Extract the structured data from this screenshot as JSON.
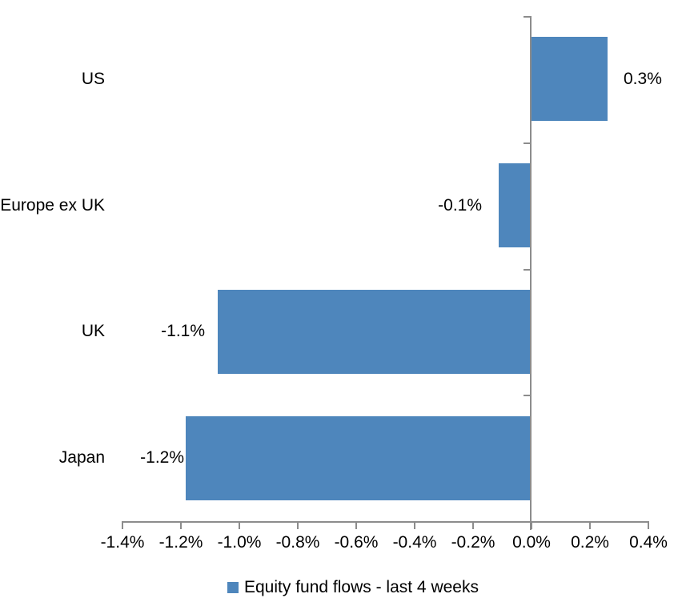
{
  "chart_data": {
    "type": "bar",
    "orientation": "horizontal",
    "title": "",
    "categories": [
      "US",
      "Europe ex UK",
      "UK",
      "Japan"
    ],
    "series": [
      {
        "name": "Equity fund flows - last 4 weeks",
        "values_pct": [
          0.3,
          -0.1,
          -1.1,
          -1.2
        ],
        "value_labels": [
          "0.3%",
          "-0.1%",
          "-1.1%",
          "-1.2%"
        ],
        "plotted_values_pct": [
          0.26,
          -0.11,
          -1.07,
          -1.18
        ]
      }
    ],
    "xlim_pct": [
      -1.4,
      0.4
    ],
    "x_tick_values_pct": [
      -1.4,
      -1.2,
      -1.0,
      -0.8,
      -0.6,
      -0.4,
      -0.2,
      0.0,
      0.2,
      0.4
    ],
    "x_tick_labels": [
      "-1.4%",
      "-1.2%",
      "-1.0%",
      "-0.8%",
      "-0.6%",
      "-0.4%",
      "-0.2%",
      "0.0%",
      "0.2%",
      "0.4%"
    ],
    "grid": false,
    "legend_position": "bottom",
    "colors": {
      "bar": "#4E86BC",
      "axis": "#8C8C8C",
      "text": "#000000",
      "background": "#FFFFFF"
    }
  },
  "legend": {
    "items": [
      {
        "label": "Equity fund flows - last 4 weeks",
        "color": "#4E86BC"
      }
    ]
  }
}
